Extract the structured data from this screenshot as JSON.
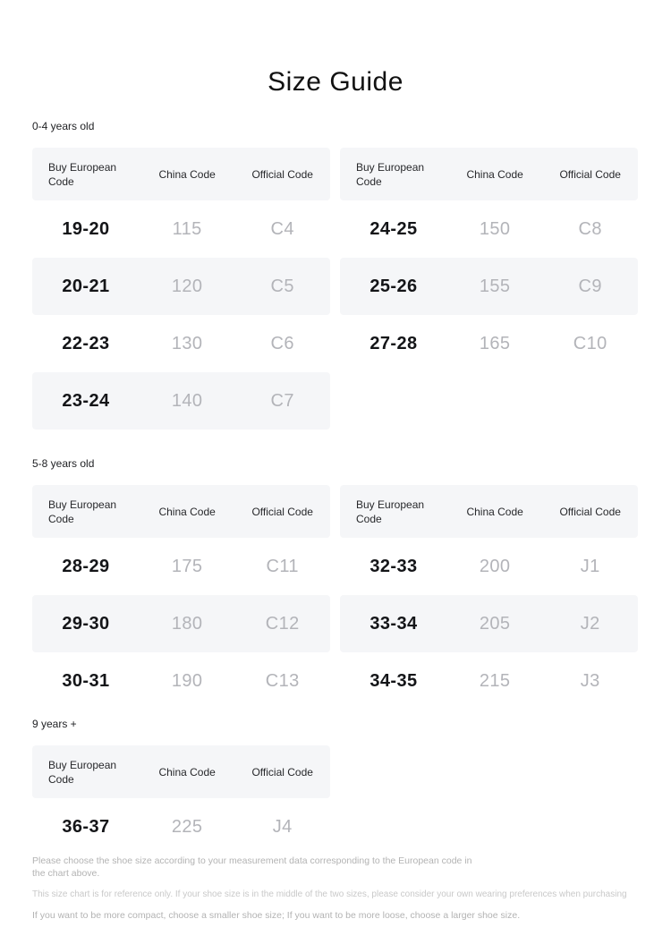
{
  "page": {
    "title": "Size Guide"
  },
  "columns": [
    "Buy European Code",
    "China Code",
    "Official Code"
  ],
  "sections": [
    {
      "label": "0-4 years old",
      "tables": [
        {
          "rows": [
            [
              "19-20",
              "115",
              "C4"
            ],
            [
              "20-21",
              "120",
              "C5"
            ],
            [
              "22-23",
              "130",
              "C6"
            ],
            [
              "23-24",
              "140",
              "C7"
            ]
          ]
        },
        {
          "rows": [
            [
              "24-25",
              "150",
              "C8"
            ],
            [
              "25-26",
              "155",
              "C9"
            ],
            [
              "27-28",
              "165",
              "C10"
            ]
          ]
        }
      ]
    },
    {
      "label": "5-8 years old",
      "tables": [
        {
          "rows": [
            [
              "28-29",
              "175",
              "C11"
            ],
            [
              "29-30",
              "180",
              "C12"
            ],
            [
              "30-31",
              "190",
              "C13"
            ]
          ]
        },
        {
          "rows": [
            [
              "32-33",
              "200",
              "J1"
            ],
            [
              "33-34",
              "205",
              "J2"
            ],
            [
              "34-35",
              "215",
              "J3"
            ]
          ]
        }
      ]
    },
    {
      "label": "9 years +",
      "tables": [
        {
          "rows": [
            [
              "36-37",
              "225",
              "J4"
            ]
          ]
        }
      ]
    }
  ],
  "notes": [
    "Please choose the shoe size according to your measurement data corresponding to the European code in the chart above.",
    "This size chart is for reference only. If your shoe size is in the middle of the two sizes, please consider your own wearing preferences when purchasing",
    "If you want to be more compact, choose a smaller shoe size; If you want to be more loose, choose a larger shoe size."
  ],
  "colors": {
    "stripe_bg": "#f5f6f8",
    "primary_text": "#141518",
    "secondary_text": "#b3b4b9",
    "note_text": "#b3b3b3",
    "note_text_light": "#c9c9c9"
  }
}
